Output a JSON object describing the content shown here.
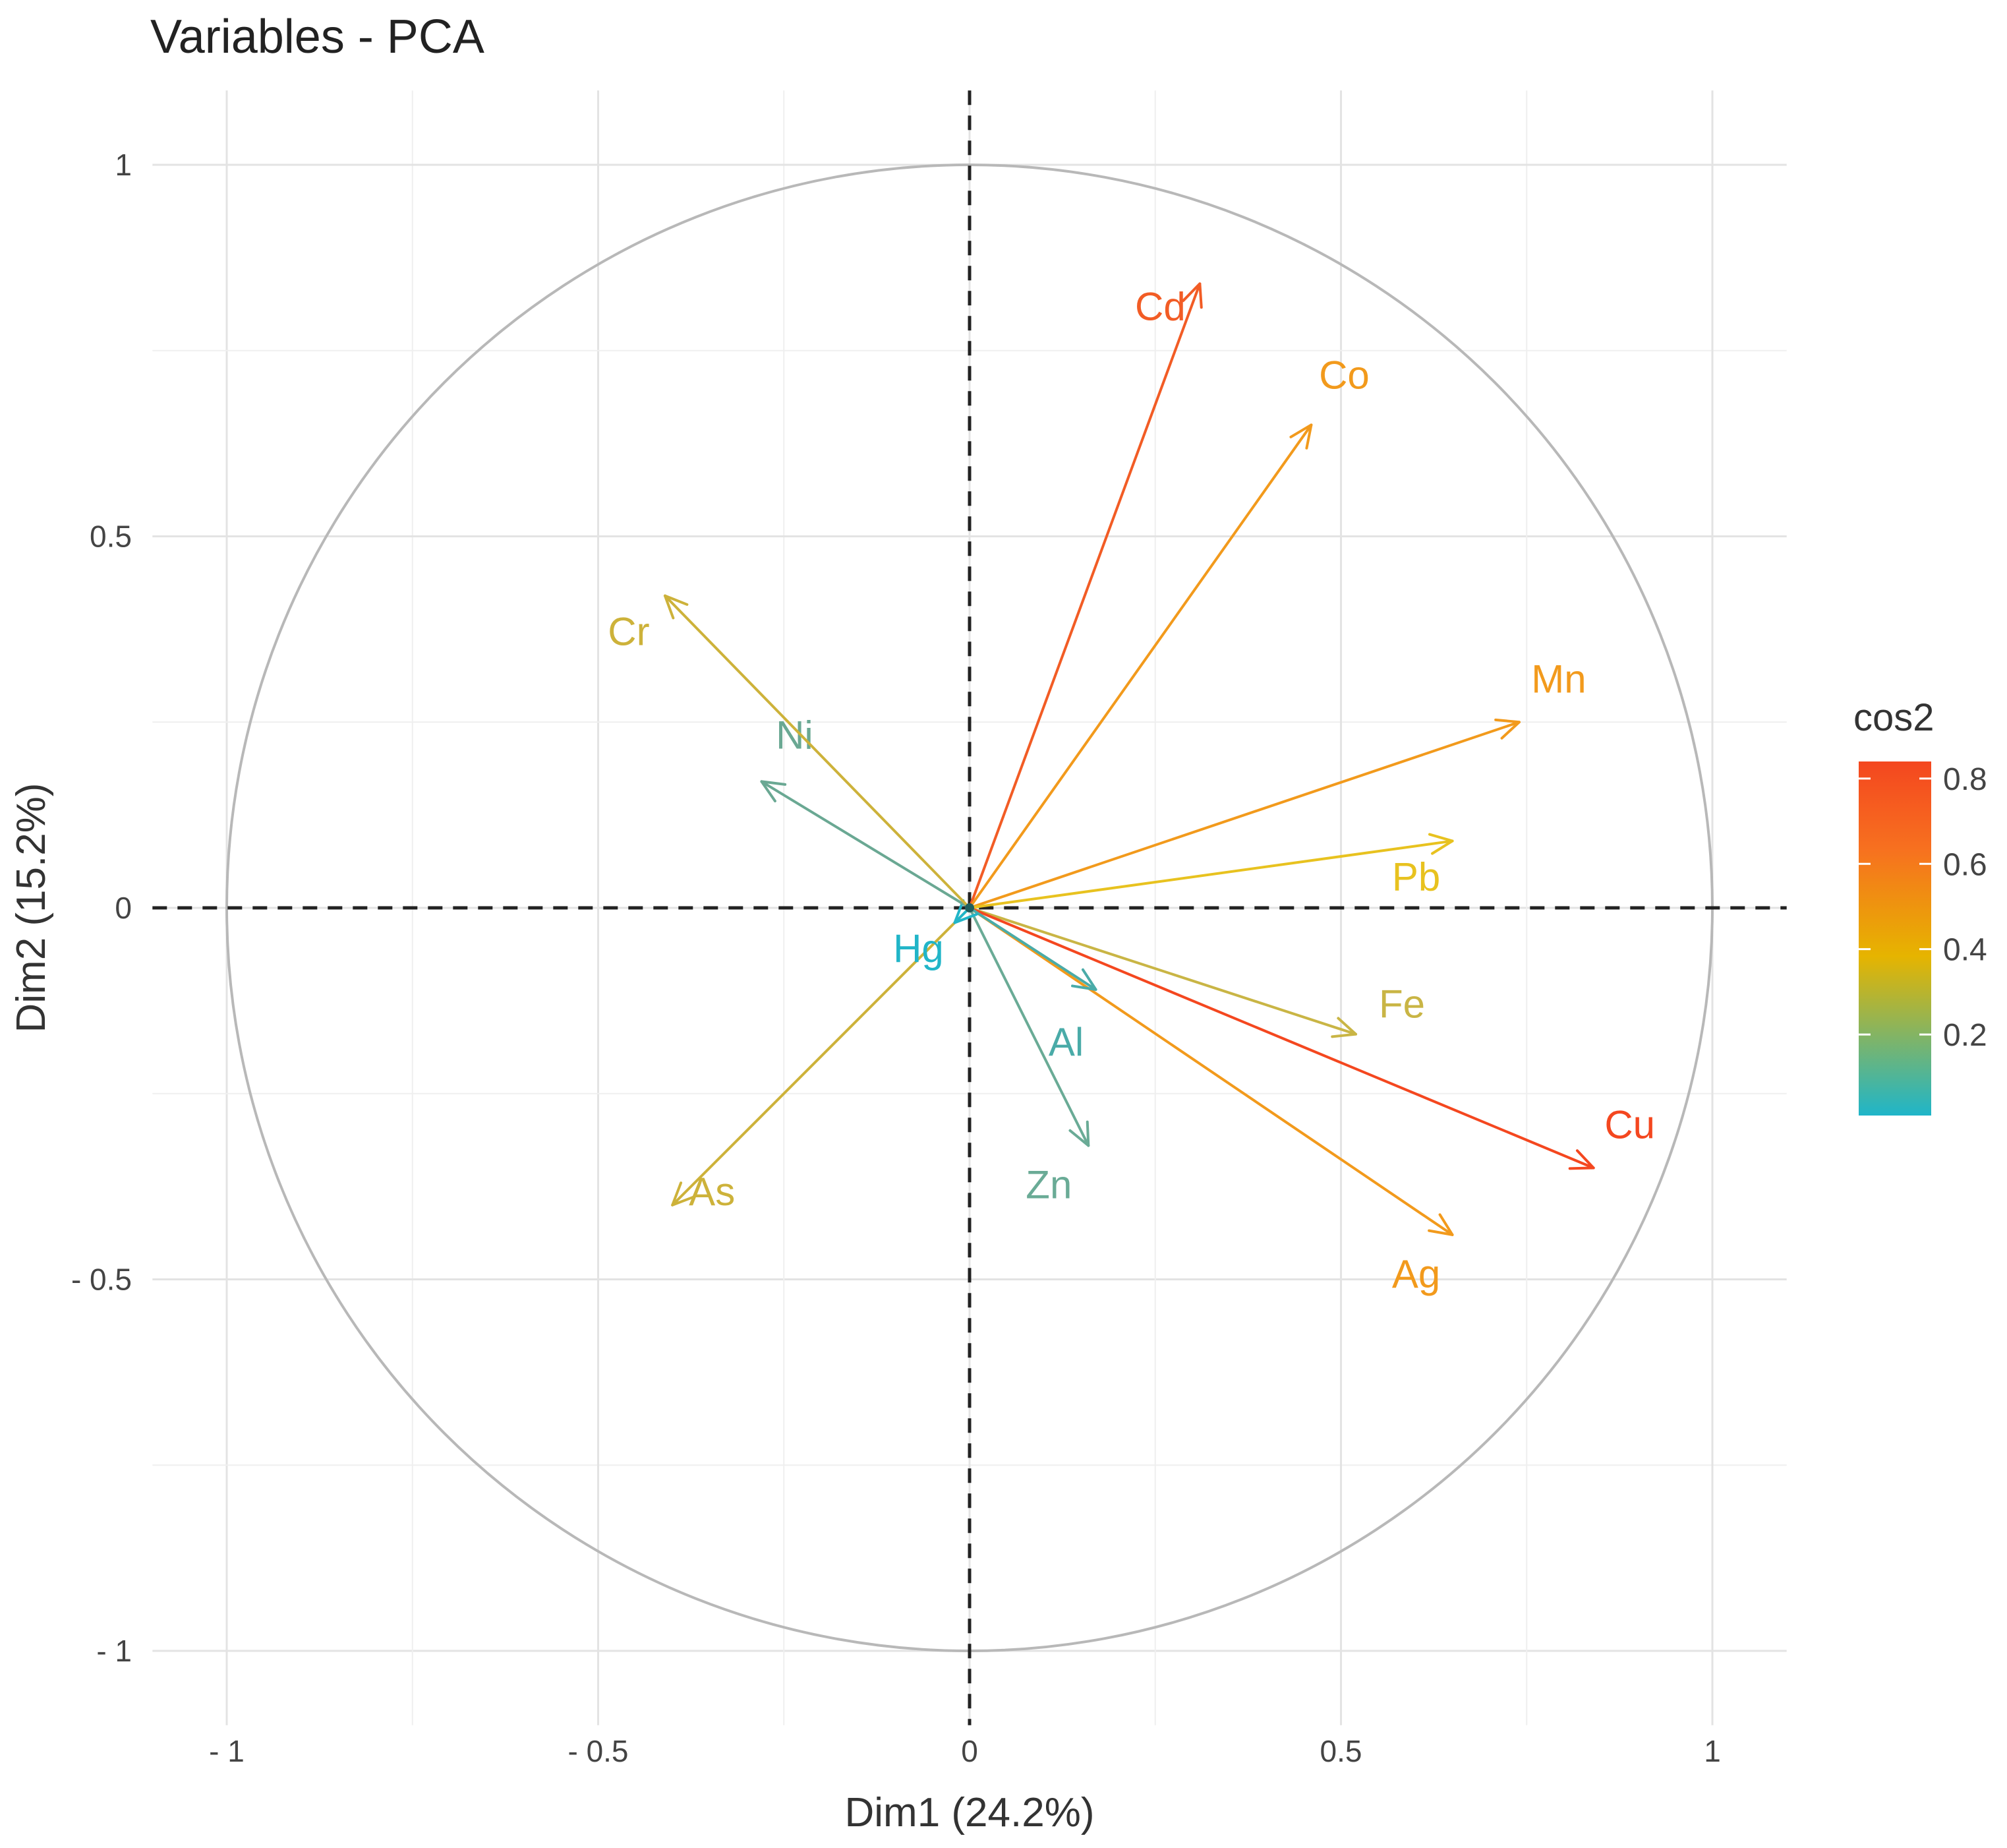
{
  "chart_data": {
    "type": "scatter",
    "subtype": "pca-variable-correlation-circle",
    "title": "Variables - PCA",
    "xlabel": "Dim1 (24.2%)",
    "ylabel": "Dim2 (15.2%)",
    "xlim": [
      -1.1,
      1.1
    ],
    "ylim": [
      -1.1,
      1.1
    ],
    "x_ticks": [
      {
        "value": -1,
        "label": "- 1"
      },
      {
        "value": -0.5,
        "label": "- 0.5"
      },
      {
        "value": 0,
        "label": "0"
      },
      {
        "value": 0.5,
        "label": "0.5"
      },
      {
        "value": 1,
        "label": "1"
      }
    ],
    "y_ticks": [
      {
        "value": 1,
        "label": "1"
      },
      {
        "value": 0.5,
        "label": "0.5"
      },
      {
        "value": 0,
        "label": "0"
      },
      {
        "value": -0.5,
        "label": "- 0.5"
      },
      {
        "value": -1,
        "label": "- 1"
      }
    ],
    "grid": true,
    "unit_circle": true,
    "legend": {
      "title": "cos2",
      "placement": "right",
      "ticks": [
        {
          "value": 0.8,
          "label": "0.8"
        },
        {
          "value": 0.6,
          "label": "0.6"
        },
        {
          "value": 0.4,
          "label": "0.4"
        },
        {
          "value": 0.2,
          "label": "0.2"
        }
      ],
      "range": [
        0.01,
        0.84
      ],
      "colors": [
        "#1fb5c9",
        "#e6b400",
        "#f7711f",
        "#f4471f"
      ]
    },
    "variables": [
      {
        "name": "Cd",
        "x": 0.31,
        "y": 0.84,
        "cos2": 0.76,
        "color": "#f25c25"
      },
      {
        "name": "Co",
        "x": 0.46,
        "y": 0.65,
        "cos2": 0.63,
        "color": "#f29a1c"
      },
      {
        "name": "Mn",
        "x": 0.74,
        "y": 0.25,
        "cos2": 0.61,
        "color": "#f29a1c"
      },
      {
        "name": "Pb",
        "x": 0.65,
        "y": 0.09,
        "cos2": 0.43,
        "color": "#e8c21f"
      },
      {
        "name": "Fe",
        "x": 0.52,
        "y": -0.17,
        "cos2": 0.3,
        "color": "#c9b545"
      },
      {
        "name": "Cu",
        "x": 0.84,
        "y": -0.35,
        "cos2": 0.83,
        "color": "#f4471f"
      },
      {
        "name": "Ag",
        "x": 0.65,
        "y": -0.44,
        "cos2": 0.62,
        "color": "#f29a1c"
      },
      {
        "name": "Al",
        "x": 0.17,
        "y": -0.11,
        "cos2": 0.04,
        "color": "#4aaba8"
      },
      {
        "name": "Zn",
        "x": 0.16,
        "y": -0.32,
        "cos2": 0.13,
        "color": "#6aab96"
      },
      {
        "name": "As",
        "x": -0.4,
        "y": -0.4,
        "cos2": 0.32,
        "color": "#cdb23a"
      },
      {
        "name": "Hg",
        "x": -0.02,
        "y": -0.02,
        "cos2": 0.01,
        "color": "#21b5c8"
      },
      {
        "name": "Ni",
        "x": -0.28,
        "y": 0.17,
        "cos2": 0.11,
        "color": "#6aa893"
      },
      {
        "name": "Cr",
        "x": -0.41,
        "y": 0.42,
        "cos2": 0.34,
        "color": "#cdb23a"
      }
    ]
  }
}
